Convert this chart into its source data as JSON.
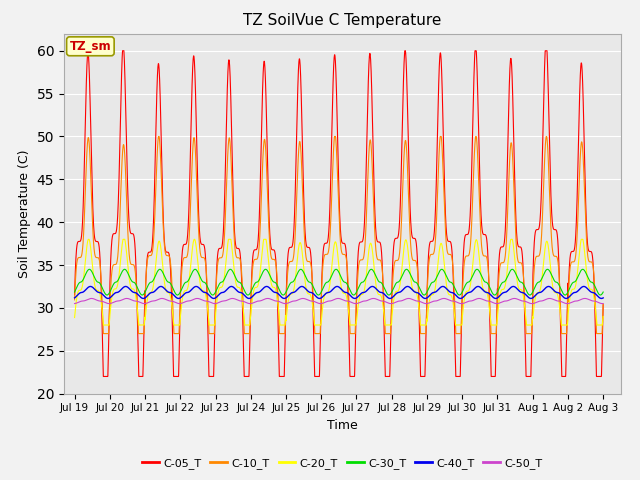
{
  "title": "TZ SoilVue C Temperature",
  "xlabel": "Time",
  "ylabel": "Soil Temperature (C)",
  "ylim": [
    20,
    62
  ],
  "yticks": [
    20,
    25,
    30,
    35,
    40,
    45,
    50,
    55,
    60
  ],
  "xlim": [
    -0.3,
    15.5
  ],
  "fig_bg": "#f2f2f2",
  "plot_bg": "#e8e8e8",
  "series_colors": {
    "C-05_T": "#ff0000",
    "C-10_T": "#ff8800",
    "C-20_T": "#ffff00",
    "C-30_T": "#00dd00",
    "C-40_T": "#0000ee",
    "C-50_T": "#cc44cc"
  },
  "legend_label": "TZ_sm",
  "xtick_labels": [
    "Jul 19",
    "Jul 20",
    "Jul 21",
    "Jul 22",
    "Jul 23",
    "Jul 24",
    "Jul 25",
    "Jul 26",
    "Jul 27",
    "Jul 28",
    "Jul 29",
    "Jul 30",
    "Jul 31",
    "Aug 1",
    "Aug 2",
    "Aug 3"
  ],
  "xtick_positions": [
    0,
    1,
    2,
    3,
    4,
    5,
    6,
    7,
    8,
    9,
    10,
    11,
    12,
    13,
    14,
    15
  ],
  "num_days": 15,
  "pts_per_day": 288
}
